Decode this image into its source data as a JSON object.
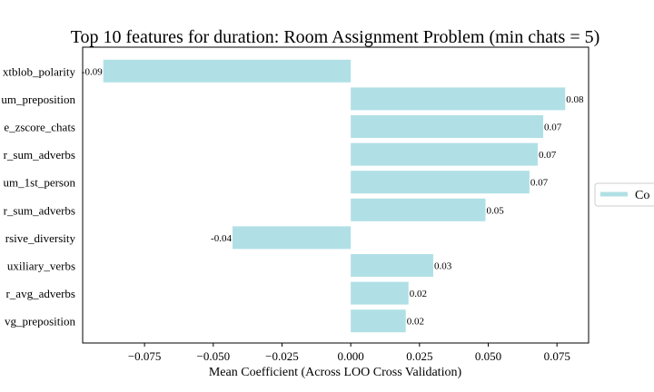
{
  "chart_data": {
    "type": "bar",
    "orientation": "horizontal",
    "title": "Top 10 features for duration: Room Assignment Problem (min chats = 5)",
    "xlabel": "Mean Coefficient (Across LOO Cross Validation)",
    "ylabel": "",
    "categories": [
      "xtblob_polarity",
      "um_preposition",
      "e_zscore_chats",
      "r_sum_adverbs",
      "um_1st_person",
      "r_sum_adverbs",
      "rsive_diversity",
      "uxiliary_verbs",
      "r_avg_adverbs",
      "vg_preposition"
    ],
    "values": [
      -0.09,
      0.078,
      0.07,
      0.068,
      0.065,
      0.049,
      -0.043,
      0.03,
      0.021,
      0.02
    ],
    "data_labels": [
      "-0.09",
      "0.08",
      "0.07",
      "0.07",
      "0.07",
      "0.05",
      "-0.04",
      "0.03",
      "0.02",
      "0.02"
    ],
    "xticks": [
      "−0.075",
      "−0.050",
      "−0.025",
      "0.000",
      "0.025",
      "0.050",
      "0.075"
    ],
    "xtick_values": [
      -0.075,
      -0.05,
      -0.025,
      0,
      0.025,
      0.05,
      0.075
    ],
    "xlim": [
      -0.0975,
      0.0865
    ],
    "grid": false,
    "bar_color": "#b0e0e6",
    "legend": {
      "placement": "right",
      "entries": [
        "Co"
      ]
    }
  }
}
